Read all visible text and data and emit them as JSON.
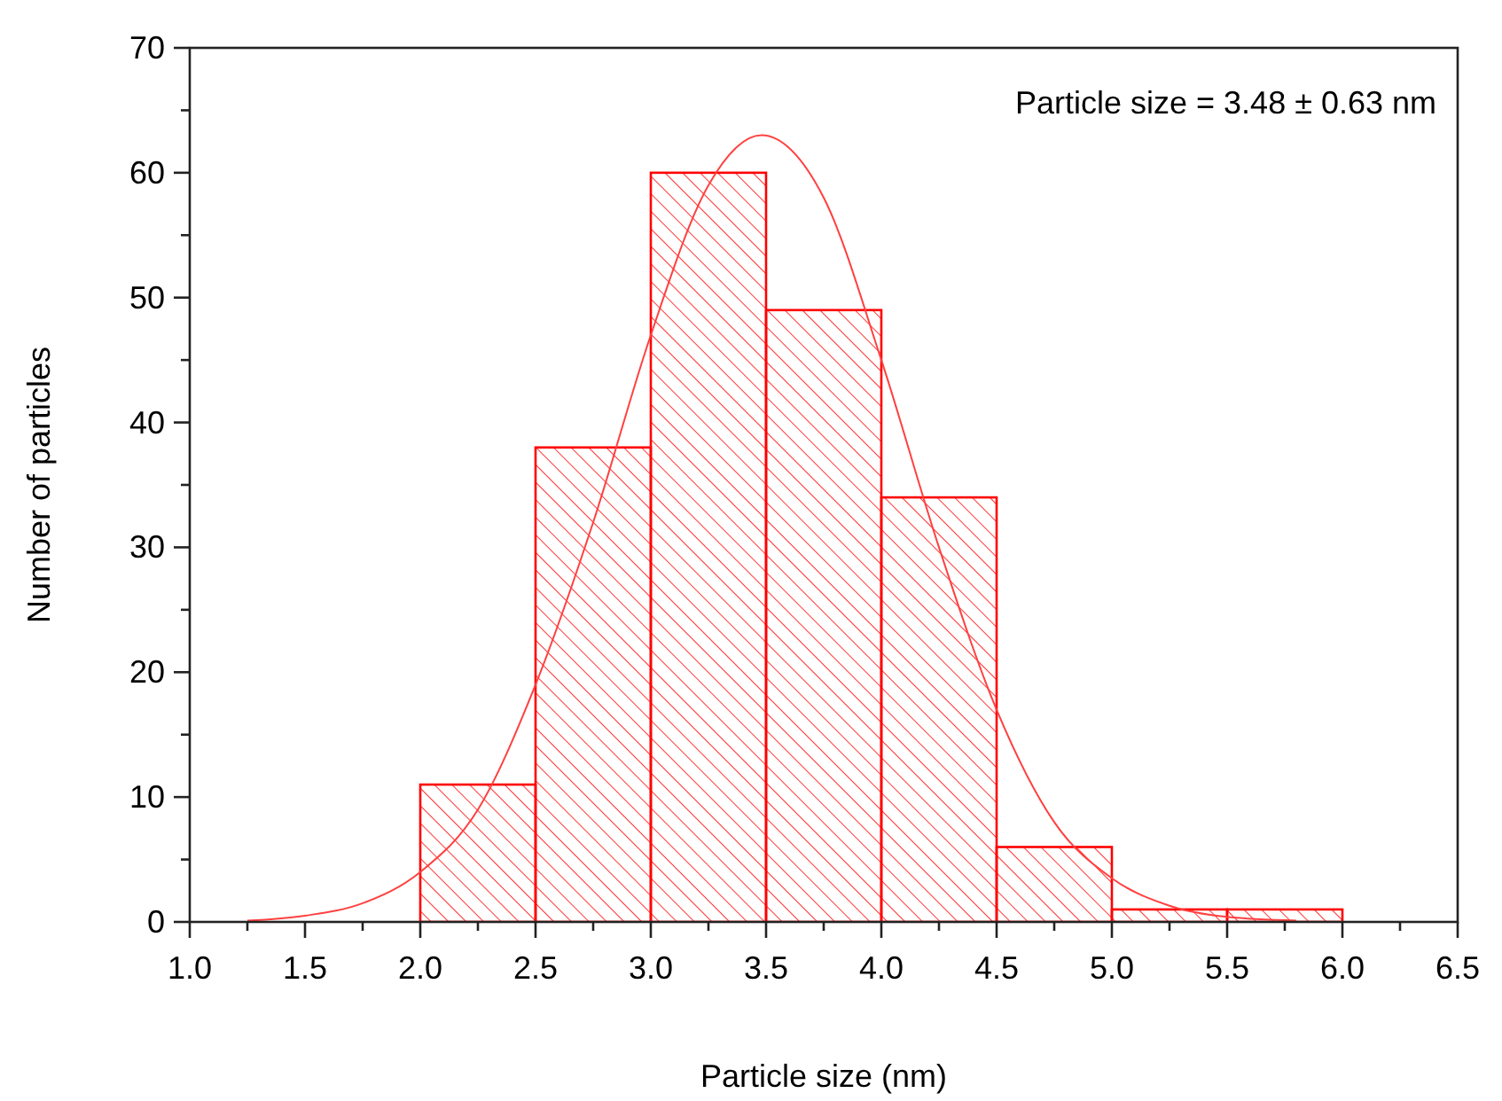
{
  "chart_data": {
    "type": "histogram",
    "xlabel": "Particle size (nm)",
    "ylabel": "Number of particles",
    "annotations": [
      "Particle size = 3.48 ± 0.63 nm"
    ],
    "bins": [
      2.0,
      2.5,
      3.0,
      3.5,
      4.0,
      4.5,
      5.0,
      5.5,
      6.0
    ],
    "values": [
      11,
      38,
      60,
      49,
      34,
      6,
      1,
      1
    ],
    "color": "#ff0000",
    "series": [
      {
        "type": "line",
        "color": "#ff4040",
        "x": [
          1.25,
          1.5,
          1.75,
          2.0,
          2.25,
          2.5,
          2.75,
          3.0,
          3.25,
          3.48,
          3.75,
          4.0,
          4.25,
          4.5,
          4.75,
          5.0,
          5.25,
          5.5,
          5.8
        ],
        "values": [
          0.1,
          0.5,
          1.5,
          4,
          9,
          19,
          32,
          47,
          59,
          63,
          58,
          45,
          30,
          17,
          8,
          3.5,
          1.3,
          0.4,
          0.1
        ]
      }
    ],
    "xlim": [
      1.0,
      6.5
    ],
    "xticks": [
      {
        "value": 1.0,
        "label": "1.0"
      },
      {
        "value": 1.25,
        "label": null
      },
      1.5,
      {
        "value": 1.75,
        "label": null
      },
      {
        "value": 2.0,
        "label": "2.0"
      },
      {
        "value": 2.25,
        "label": null
      },
      2.5,
      {
        "value": 2.75,
        "label": null
      },
      {
        "value": 3.0,
        "label": "3.0"
      },
      {
        "value": 3.25,
        "label": null
      },
      3.5,
      {
        "value": 3.75,
        "label": null
      },
      {
        "value": 4.0,
        "label": "4.0"
      },
      {
        "value": 4.25,
        "label": null
      },
      4.5,
      {
        "value": 4.75,
        "label": null
      },
      {
        "value": 5.0,
        "label": "5.0"
      },
      {
        "value": 5.25,
        "label": null
      },
      5.5,
      {
        "value": 5.75,
        "label": null
      },
      {
        "value": 6.0,
        "label": "6.0"
      },
      {
        "value": 6.25,
        "label": null
      },
      6.5
    ],
    "ylim": [
      0,
      70
    ],
    "yticks": [
      0,
      {
        "value": 5,
        "label": null
      },
      10,
      {
        "value": 15,
        "label": null
      },
      20,
      {
        "value": 25,
        "label": null
      },
      30,
      {
        "value": 35,
        "label": null
      },
      40,
      {
        "value": 45,
        "label": null
      },
      50,
      {
        "value": 55,
        "label": null
      },
      60,
      {
        "value": 65,
        "label": null
      },
      70
    ],
    "grid": false
  }
}
